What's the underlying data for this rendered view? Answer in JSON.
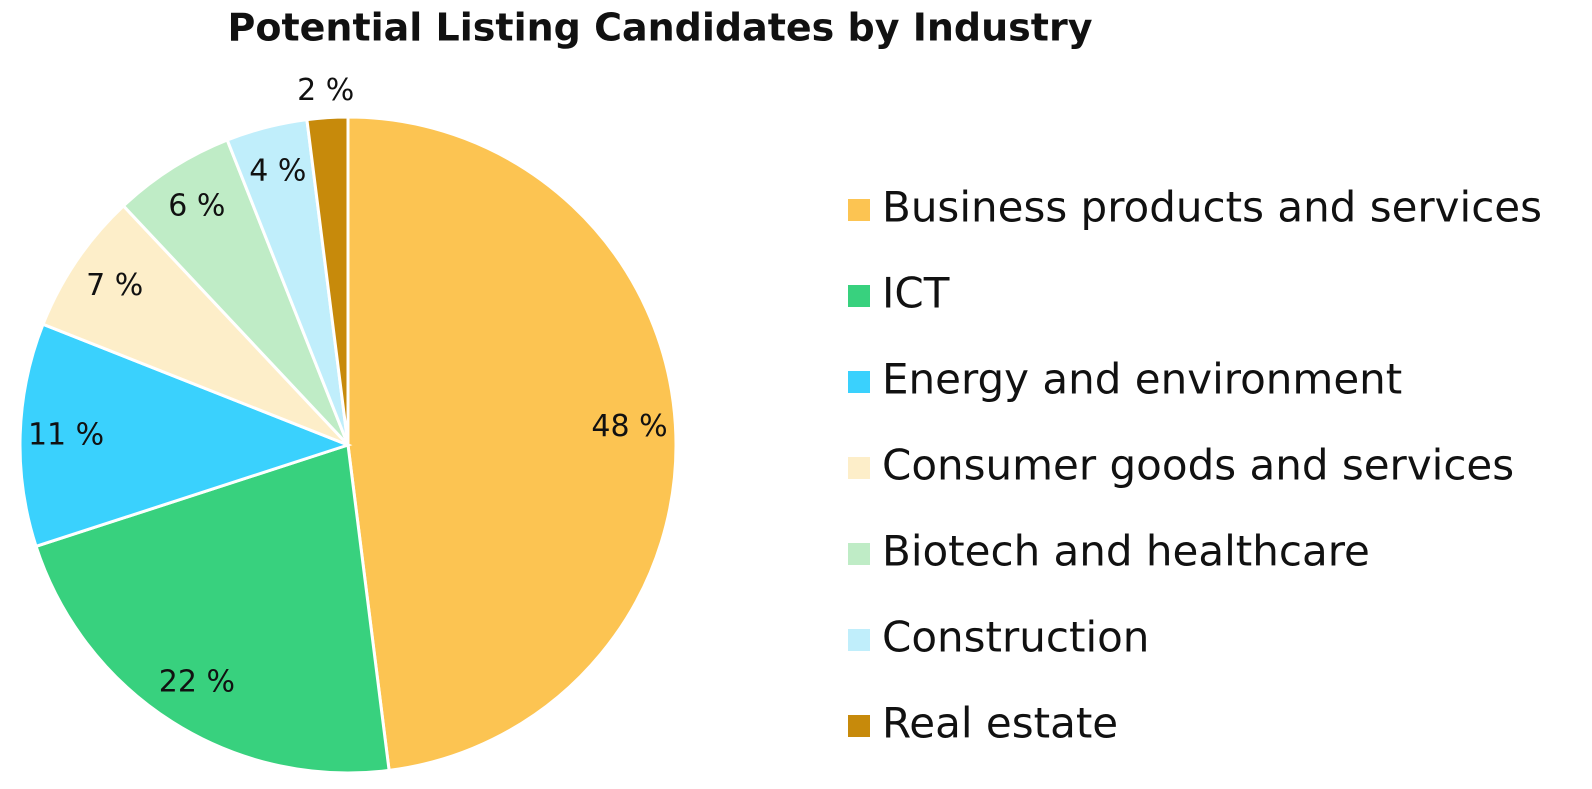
{
  "chart_data": {
    "type": "pie",
    "title": "Potential Listing Candidates by Industry",
    "categories": [
      "Business products and services",
      "ICT",
      "Energy and environment",
      "Consumer goods and services",
      "Biotech and healthcare",
      "Construction",
      "Real estate"
    ],
    "values": [
      48,
      22,
      11,
      7,
      6,
      4,
      2
    ],
    "value_labels": [
      "48 %",
      "22 %",
      "11 %",
      "7 %",
      "6 %",
      "4 %",
      "2 %"
    ],
    "colors": [
      "#fcc452",
      "#38d17e",
      "#3ad1fd",
      "#fdeec9",
      "#bfecc6",
      "#c0eefb",
      "#c78a0b"
    ],
    "legend": "right"
  }
}
